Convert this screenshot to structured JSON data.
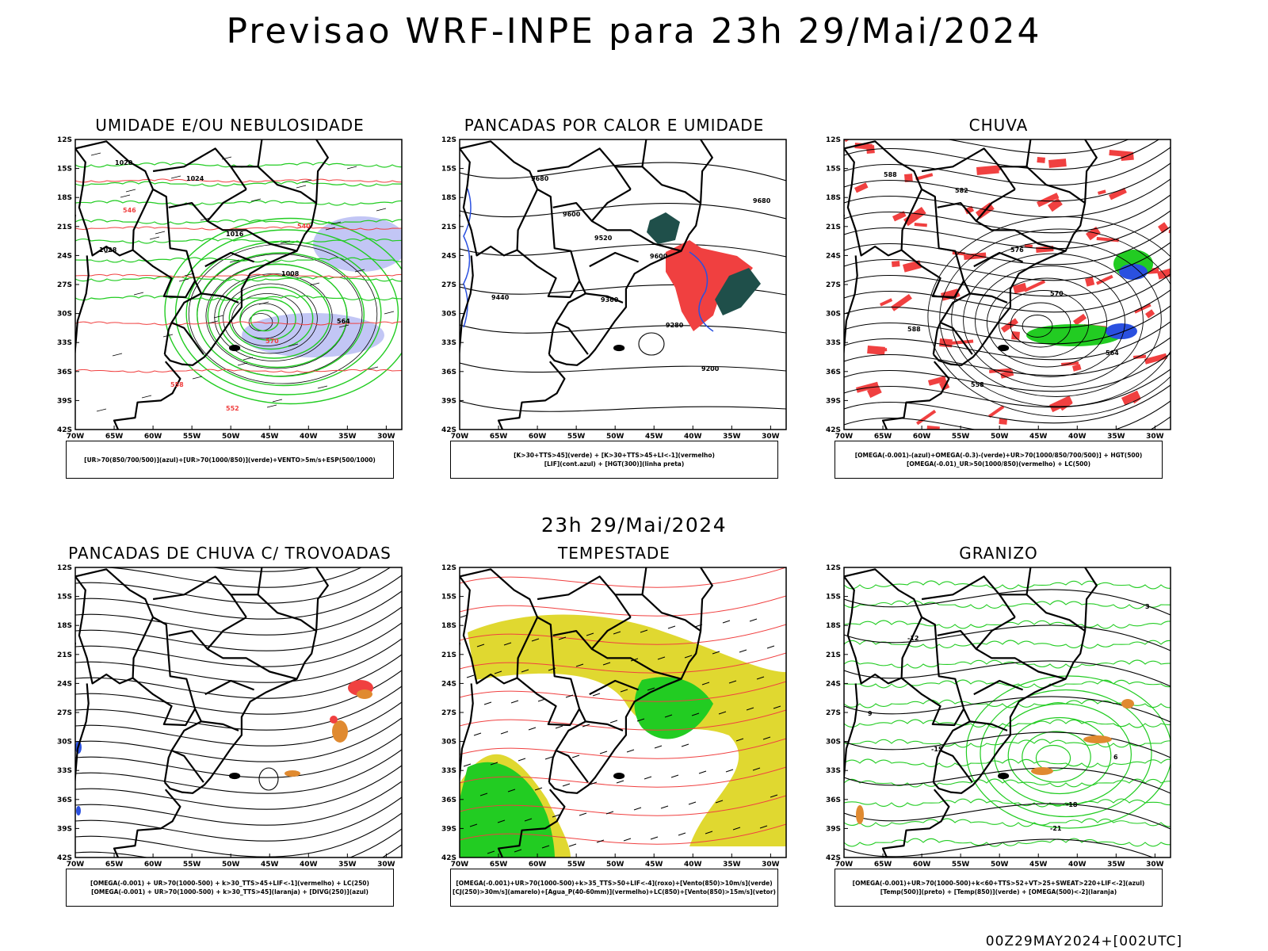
{
  "title": "Previsao WRF-INPE  para 23h 29/Mai/2024",
  "subtitle": "23h 29/Mai/2024",
  "footer": "00Z29MAY2024+[002UTC]",
  "axes": {
    "lat_labels": [
      "12S",
      "15S",
      "18S",
      "21S",
      "24S",
      "27S",
      "30S",
      "33S",
      "36S",
      "39S",
      "42S"
    ],
    "lon_labels": [
      "70W",
      "65W",
      "60W",
      "55W",
      "50W",
      "45W",
      "40W",
      "35W",
      "30W"
    ]
  },
  "panels": [
    {
      "title": "UMIDADE E/OU NEBULOSIDADE",
      "legend": [
        "[UR>70(850/700/500)](azul)+[UR>70(1000/850)](verde)+VENTO>5m/s+ESP(500/1000)"
      ],
      "contour_labels": [
        "1020",
        "1024",
        "1016",
        "1028",
        "1008",
        "564",
        "570",
        "558",
        "552",
        "546",
        "540"
      ]
    },
    {
      "title": "PANCADAS POR CALOR E UMIDADE",
      "legend": [
        "[K>30+TTS>45](verde) + [K>30+TTS>45+LI<-1](vermelho)",
        "[LIF](cont.azul) + [HGT(300)](linha preta)"
      ],
      "contour_labels": [
        "9680",
        "9600",
        "9520",
        "9440",
        "9360",
        "9280",
        "9200"
      ]
    },
    {
      "title": "CHUVA",
      "legend": [
        "[OMEGA(-0.001)-(azul)+OMEGA(-0.3)-(verde)+UR>70(1000/850/700/500)] + HGT(500)",
        "[OMEGA(-0.01)_UR>50(1000/850)(vermelho) + LC(500)"
      ],
      "contour_labels": [
        "588",
        "582",
        "576",
        "570",
        "564",
        "558"
      ]
    },
    {
      "title": "PANCADAS DE CHUVA C/ TROVOADAS",
      "legend": [
        "[OMEGA(-0.001) + UR>70(1000-500) + k>30_TTS>45+LIF<-1](vermelho) + LC(250)",
        "[OMEGA(-0.001) + UR>70(1000-500) + k>30_TTS>45](laranja) + [DIVG(250)](azul)"
      ],
      "contour_labels": []
    },
    {
      "title": "TEMPESTADE",
      "legend": [
        "[OMEGA(-0.001)+UR>70(1000-500)+k>35_TTS>50+LIF<-4](roxo)+[Vento(850)>10m/s](verde)",
        "[CJ(250)>30m/s](amarelo)+[Agua_P(40-60mm)](vermelho)+LC(850)+[Vento(850)>15m/s](vetor)"
      ],
      "contour_labels": []
    },
    {
      "title": "GRANIZO",
      "legend": [
        "[OMEGA(-0.001)+UR>70(1000-500)+k<60+TTS>52+VT>25+SWEAT>220+LIF<-2](azul)",
        "[Temp(500)](preto) + [Temp(850)](verde) + [OMEGA(500)<-2](laranja)"
      ],
      "contour_labels": [
        "-12",
        "-15",
        "-18",
        "-21",
        "9",
        "6",
        "3"
      ]
    }
  ],
  "colors": {
    "green": "#22cc22",
    "red": "#f04040",
    "blue": "#2a50e0",
    "lightblue": "#9aa0ee",
    "yellow": "#e0d830",
    "darkgreen": "#1f4f4a",
    "orange": "#e08a30"
  }
}
